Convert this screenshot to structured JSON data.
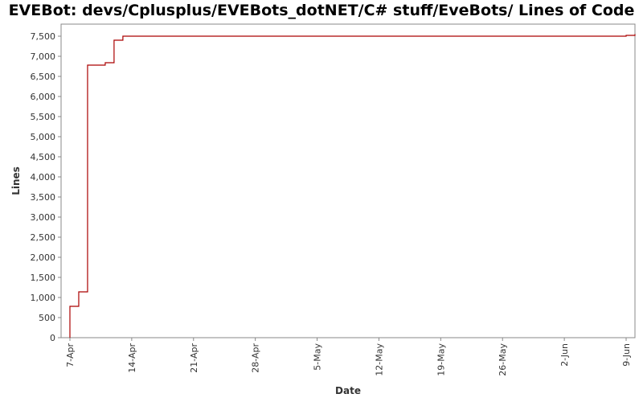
{
  "chart_data": {
    "type": "line",
    "title": "EVEBot: devs/Cplusplus/EVEBots_dotNET/C# stuff/EveBots/ Lines of Code",
    "xlabel": "Date",
    "ylabel": "Lines",
    "xlim": [
      "2008-04-06",
      "2008-06-10"
    ],
    "ylim": [
      0,
      7800
    ],
    "y_ticks": [
      0,
      500,
      1000,
      1500,
      2000,
      2500,
      3000,
      3500,
      4000,
      4500,
      5000,
      5500,
      6000,
      6500,
      7000,
      7500
    ],
    "y_tick_labels": [
      "0",
      "500",
      "1,000",
      "1,500",
      "2,000",
      "2,500",
      "3,000",
      "3,500",
      "4,000",
      "4,500",
      "5,000",
      "5,500",
      "6,000",
      "6,500",
      "7,000",
      "7,500"
    ],
    "x_ticks": [
      "2008-04-07",
      "2008-04-14",
      "2008-04-21",
      "2008-04-28",
      "2008-05-05",
      "2008-05-12",
      "2008-05-19",
      "2008-05-26",
      "2008-06-02",
      "2008-06-09"
    ],
    "x_tick_labels": [
      "7-Apr",
      "14-Apr",
      "21-Apr",
      "28-Apr",
      "5-May",
      "12-May",
      "19-May",
      "26-May",
      "2-Jun",
      "9-Jun"
    ],
    "grid": false,
    "step": true,
    "series": [
      {
        "color": "#aa0000",
        "x": [
          "2008-04-07",
          "2008-04-07",
          "2008-04-08",
          "2008-04-09",
          "2008-04-09",
          "2008-04-09",
          "2008-04-11",
          "2008-04-12",
          "2008-04-13",
          "2008-04-13",
          "2008-06-09",
          "2008-06-10"
        ],
        "values": [
          0,
          780,
          1140,
          6650,
          6700,
          6780,
          6840,
          7400,
          7450,
          7500,
          7520,
          7550
        ]
      }
    ]
  }
}
